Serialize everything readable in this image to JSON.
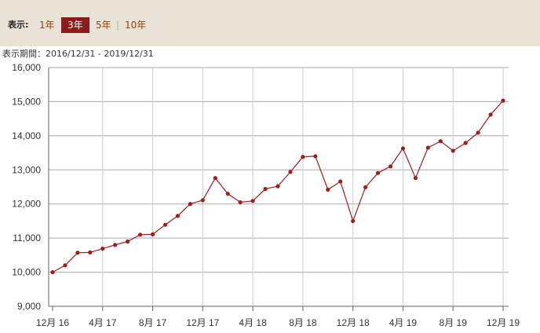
{
  "period": {
    "label": "表示:",
    "options": [
      {
        "label": "1年",
        "active": false
      },
      {
        "label": "3年",
        "active": true
      },
      {
        "label": "5年",
        "active": false
      },
      {
        "label": "10年",
        "active": false
      }
    ],
    "separator": "|"
  },
  "range": {
    "label": "表示期間：",
    "value": "2016/12/31 - 2019/12/31"
  },
  "colors": {
    "accent": "#8c1b1b",
    "line": "#9a1f1f",
    "bar_bg": "#e9e3d7",
    "grid": "#cccccc"
  },
  "chart_data": {
    "type": "line",
    "title": "",
    "xlabel": "",
    "ylabel": "",
    "ylim": [
      9000,
      16000
    ],
    "yticks": [
      "9,000",
      "10,000",
      "11,000",
      "12,000",
      "13,000",
      "14,000",
      "15,000",
      "16,000"
    ],
    "xtick_labels": [
      "12月 16",
      "4月 17",
      "8月 17",
      "12月 17",
      "4月 18",
      "8月 18",
      "12月 18",
      "4月 19",
      "8月 19",
      "12月 19"
    ],
    "grid": true,
    "x": [
      "2016-12",
      "2017-01",
      "2017-02",
      "2017-03",
      "2017-04",
      "2017-05",
      "2017-06",
      "2017-07",
      "2017-08",
      "2017-09",
      "2017-10",
      "2017-11",
      "2017-12",
      "2018-01",
      "2018-02",
      "2018-03",
      "2018-04",
      "2018-05",
      "2018-06",
      "2018-07",
      "2018-08",
      "2018-09",
      "2018-10",
      "2018-11",
      "2018-12",
      "2019-01",
      "2019-02",
      "2019-03",
      "2019-04",
      "2019-05",
      "2019-06",
      "2019-07",
      "2019-08",
      "2019-09",
      "2019-10",
      "2019-11",
      "2019-12"
    ],
    "series": [
      {
        "values": [
          10000,
          10200,
          10570,
          10580,
          10690,
          10800,
          10900,
          11100,
          11110,
          11390,
          11650,
          12000,
          12110,
          12760,
          12300,
          12050,
          12090,
          12440,
          12520,
          12940,
          13380,
          13400,
          12420,
          12660,
          11500,
          12490,
          12910,
          13100,
          13630,
          12760,
          13650,
          13840,
          13560,
          13790,
          14090,
          14620,
          15030
        ]
      }
    ]
  }
}
